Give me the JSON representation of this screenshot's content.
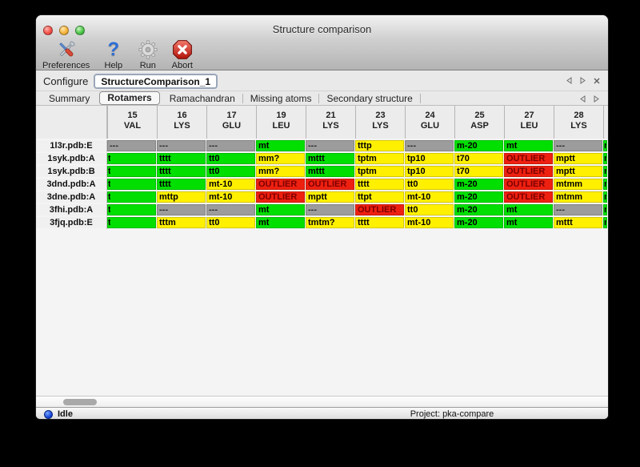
{
  "window": {
    "title": "Structure comparison"
  },
  "toolbar": {
    "buttons": [
      {
        "label": "Preferences",
        "icon": "tools-icon"
      },
      {
        "label": "Help",
        "icon": "question-mark-icon"
      },
      {
        "label": "Run",
        "icon": "gear-icon"
      },
      {
        "label": "Abort",
        "icon": "stop-x-icon"
      }
    ]
  },
  "icons": {
    "help_glyph": "?"
  },
  "configure": {
    "label": "Configure",
    "value": "StructureComparison_1"
  },
  "tabs": {
    "items": [
      {
        "label": "Summary"
      },
      {
        "label": "Rotamers"
      },
      {
        "label": "Ramachandran"
      },
      {
        "label": "Missing atoms"
      },
      {
        "label": "Secondary structure"
      }
    ],
    "active": "Rotamers"
  },
  "table": {
    "columns": [
      {
        "num": "15",
        "res": "VAL"
      },
      {
        "num": "16",
        "res": "LYS"
      },
      {
        "num": "17",
        "res": "GLU"
      },
      {
        "num": "19",
        "res": "LEU"
      },
      {
        "num": "21",
        "res": "LYS"
      },
      {
        "num": "23",
        "res": "LYS"
      },
      {
        "num": "24",
        "res": "GLU"
      },
      {
        "num": "25",
        "res": "ASP"
      },
      {
        "num": "27",
        "res": "LEU"
      },
      {
        "num": "28",
        "res": "LYS"
      }
    ],
    "legend_colors": {
      "green": "#00df00",
      "yellow": "#fff000",
      "red": "#ee2010",
      "gray": "#9c9c9c"
    },
    "rows": [
      {
        "label": "1l3r.pdb:E",
        "cells": [
          {
            "t": "---",
            "c": "gray"
          },
          {
            "t": "---",
            "c": "gray"
          },
          {
            "t": "---",
            "c": "gray"
          },
          {
            "t": "mt",
            "c": "green"
          },
          {
            "t": "---",
            "c": "gray"
          },
          {
            "t": "tttp",
            "c": "yellow"
          },
          {
            "t": "---",
            "c": "gray"
          },
          {
            "t": "m-20",
            "c": "green"
          },
          {
            "t": "mt",
            "c": "green"
          },
          {
            "t": "---",
            "c": "gray"
          }
        ],
        "edge": {
          "t": "m",
          "c": "green"
        }
      },
      {
        "label": "1syk.pdb:A",
        "cells": [
          {
            "t": "t",
            "c": "green",
            "clip": true
          },
          {
            "t": "tttt",
            "c": "green"
          },
          {
            "t": "tt0",
            "c": "green"
          },
          {
            "t": "mm?",
            "c": "yellow"
          },
          {
            "t": "mttt",
            "c": "green"
          },
          {
            "t": "tptm",
            "c": "yellow"
          },
          {
            "t": "tp10",
            "c": "yellow"
          },
          {
            "t": "t70",
            "c": "yellow"
          },
          {
            "t": "OUTLIER",
            "c": "red"
          },
          {
            "t": "mptt",
            "c": "yellow"
          }
        ],
        "edge": {
          "t": "m",
          "c": "green"
        }
      },
      {
        "label": "1syk.pdb:B",
        "cells": [
          {
            "t": "t",
            "c": "green",
            "clip": true
          },
          {
            "t": "tttt",
            "c": "green"
          },
          {
            "t": "tt0",
            "c": "green"
          },
          {
            "t": "mm?",
            "c": "yellow"
          },
          {
            "t": "mttt",
            "c": "green"
          },
          {
            "t": "tptm",
            "c": "yellow"
          },
          {
            "t": "tp10",
            "c": "yellow"
          },
          {
            "t": "t70",
            "c": "yellow"
          },
          {
            "t": "OUTLIER",
            "c": "red"
          },
          {
            "t": "mptt",
            "c": "yellow"
          }
        ],
        "edge": {
          "t": "m",
          "c": "green"
        }
      },
      {
        "label": "3dnd.pdb:A",
        "cells": [
          {
            "t": "t",
            "c": "green",
            "clip": true
          },
          {
            "t": "tttt",
            "c": "green"
          },
          {
            "t": "mt-10",
            "c": "yellow"
          },
          {
            "t": "OUTLIER",
            "c": "red"
          },
          {
            "t": "OUTLIER",
            "c": "red"
          },
          {
            "t": "tttt",
            "c": "yellow"
          },
          {
            "t": "tt0",
            "c": "yellow"
          },
          {
            "t": "m-20",
            "c": "green"
          },
          {
            "t": "OUTLIER",
            "c": "red"
          },
          {
            "t": "mtmm",
            "c": "yellow"
          }
        ],
        "edge": {
          "t": "m",
          "c": "green"
        }
      },
      {
        "label": "3dne.pdb:A",
        "cells": [
          {
            "t": "t",
            "c": "green",
            "clip": true
          },
          {
            "t": "mttp",
            "c": "yellow"
          },
          {
            "t": "mt-10",
            "c": "yellow"
          },
          {
            "t": "OUTLIER",
            "c": "red"
          },
          {
            "t": "mptt",
            "c": "yellow"
          },
          {
            "t": "ttpt",
            "c": "yellow"
          },
          {
            "t": "mt-10",
            "c": "yellow"
          },
          {
            "t": "m-20",
            "c": "green"
          },
          {
            "t": "OUTLIER",
            "c": "red"
          },
          {
            "t": "mtmm",
            "c": "yellow"
          }
        ],
        "edge": {
          "t": "m",
          "c": "green"
        }
      },
      {
        "label": "3fhi.pdb:A",
        "cells": [
          {
            "t": "t",
            "c": "green",
            "clip": true
          },
          {
            "t": "---",
            "c": "gray"
          },
          {
            "t": "---",
            "c": "gray"
          },
          {
            "t": "mt",
            "c": "green"
          },
          {
            "t": "---",
            "c": "gray"
          },
          {
            "t": "OUTLIER",
            "c": "red"
          },
          {
            "t": "tt0",
            "c": "yellow"
          },
          {
            "t": "m-20",
            "c": "green"
          },
          {
            "t": "mt",
            "c": "green"
          },
          {
            "t": "---",
            "c": "gray"
          }
        ],
        "edge": {
          "t": "m",
          "c": "green"
        }
      },
      {
        "label": "3fjq.pdb:E",
        "cells": [
          {
            "t": "t",
            "c": "green",
            "clip": true
          },
          {
            "t": "tttm",
            "c": "yellow"
          },
          {
            "t": "tt0",
            "c": "yellow"
          },
          {
            "t": "mt",
            "c": "green"
          },
          {
            "t": "tmtm?",
            "c": "yellow"
          },
          {
            "t": "tttt",
            "c": "yellow"
          },
          {
            "t": "mt-10",
            "c": "yellow"
          },
          {
            "t": "m-20",
            "c": "green"
          },
          {
            "t": "mt",
            "c": "green"
          },
          {
            "t": "mttt",
            "c": "yellow"
          }
        ],
        "edge": {
          "t": "m",
          "c": "green"
        }
      }
    ]
  },
  "statusbar": {
    "status": "Idle",
    "project": "Project: pka-compare"
  }
}
